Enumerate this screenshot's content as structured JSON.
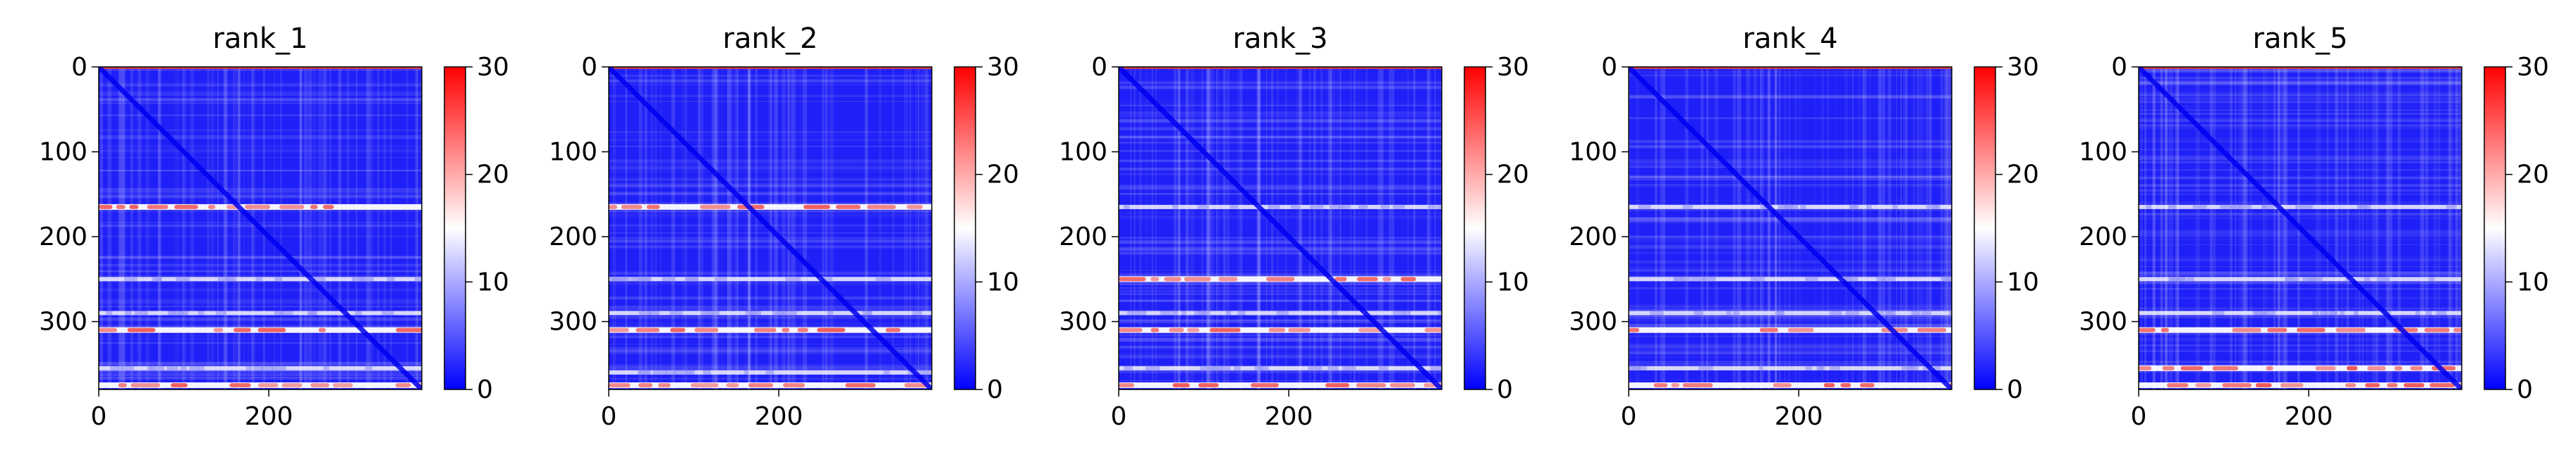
{
  "colormap": {
    "low": "#0000ff",
    "mid": "#ffffff",
    "high": "#ff0000"
  },
  "chart_data": [
    {
      "type": "heatmap",
      "title": "rank_1",
      "x_ticks": [
        0,
        200
      ],
      "y_ticks": [
        0,
        100,
        200,
        300
      ],
      "xlim": [
        0,
        380
      ],
      "ylim": [
        380,
        0
      ],
      "colorbar": {
        "range": [
          0,
          30
        ],
        "ticks": [
          0,
          10,
          20,
          30
        ]
      },
      "high_rows": [
        165,
        310,
        375
      ],
      "mid_rows": [
        250,
        290,
        355
      ]
    },
    {
      "type": "heatmap",
      "title": "rank_2",
      "x_ticks": [
        0,
        200
      ],
      "y_ticks": [
        0,
        100,
        200,
        300
      ],
      "xlim": [
        0,
        380
      ],
      "ylim": [
        380,
        0
      ],
      "colorbar": {
        "range": [
          0,
          30
        ],
        "ticks": [
          0,
          10,
          20,
          30
        ]
      },
      "high_rows": [
        165,
        310,
        375
      ],
      "mid_rows": [
        250,
        290,
        360
      ]
    },
    {
      "type": "heatmap",
      "title": "rank_3",
      "x_ticks": [
        0,
        200
      ],
      "y_ticks": [
        0,
        100,
        200,
        300
      ],
      "xlim": [
        0,
        380
      ],
      "ylim": [
        380,
        0
      ],
      "colorbar": {
        "range": [
          0,
          30
        ],
        "ticks": [
          0,
          10,
          20,
          30
        ]
      },
      "high_rows": [
        250,
        310,
        375
      ],
      "mid_rows": [
        165,
        290,
        355
      ]
    },
    {
      "type": "heatmap",
      "title": "rank_4",
      "x_ticks": [
        0,
        200
      ],
      "y_ticks": [
        0,
        100,
        200,
        300
      ],
      "xlim": [
        0,
        380
      ],
      "ylim": [
        380,
        0
      ],
      "colorbar": {
        "range": [
          0,
          30
        ],
        "ticks": [
          0,
          10,
          20,
          30
        ]
      },
      "high_rows": [
        310,
        375
      ],
      "mid_rows": [
        165,
        250,
        290,
        355
      ]
    },
    {
      "type": "heatmap",
      "title": "rank_5",
      "x_ticks": [
        0,
        200
      ],
      "y_ticks": [
        0,
        100,
        200,
        300
      ],
      "xlim": [
        0,
        380
      ],
      "ylim": [
        380,
        0
      ],
      "colorbar": {
        "range": [
          0,
          30
        ],
        "ticks": [
          0,
          10,
          20,
          30
        ]
      },
      "high_rows": [
        310,
        355,
        375
      ],
      "mid_rows": [
        165,
        250,
        290
      ]
    }
  ]
}
